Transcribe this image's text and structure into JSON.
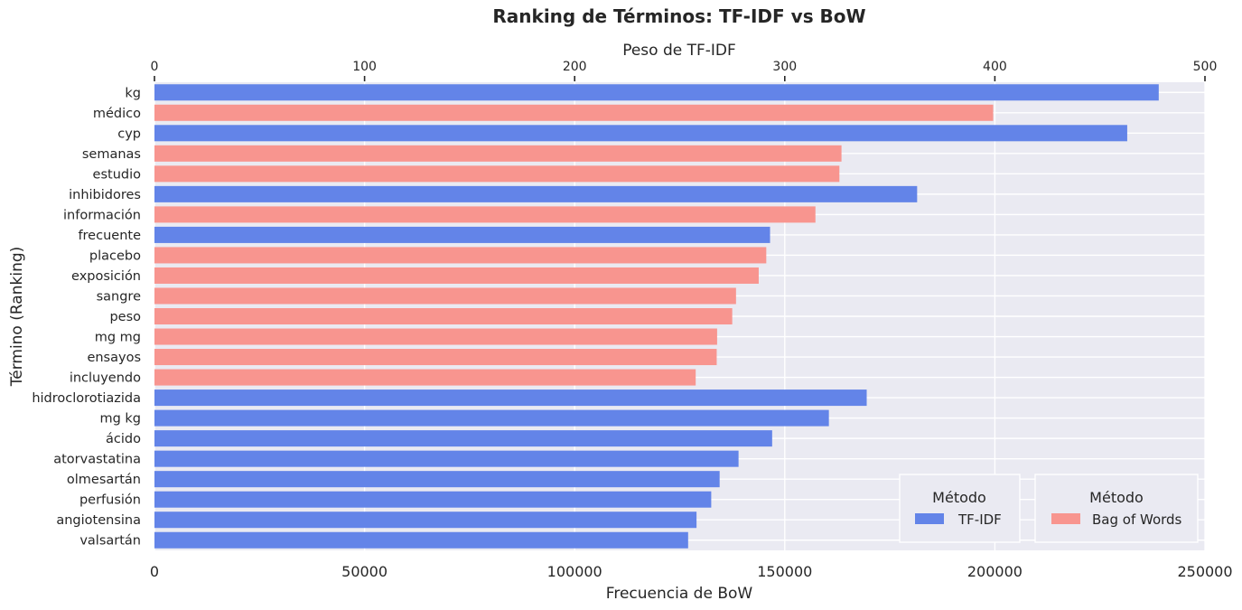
{
  "chart_data": {
    "type": "bar",
    "orientation": "horizontal",
    "title": "Ranking de Términos: TF-IDF vs BoW",
    "xlabel_bottom": "Frecuencia de BoW",
    "xlabel_top": "Peso de TF-IDF",
    "ylabel": "Término (Ranking)",
    "xlim_bottom": [
      0,
      250000
    ],
    "xlim_top": [
      0,
      500
    ],
    "xticks_bottom": [
      "0",
      "50000",
      "100000",
      "150000",
      "200000",
      "250000"
    ],
    "xticks_top": [
      "0",
      "100",
      "200",
      "300",
      "400",
      "500"
    ],
    "grid": true,
    "categories": [
      "kg",
      "médico",
      "cyp",
      "semanas",
      "estudio",
      "inhibidores",
      "información",
      "frecuente",
      "placebo",
      "exposición",
      "sangre",
      "peso",
      "mg mg",
      "ensayos",
      "incluyendo",
      "hidroclorotiazida",
      "mg kg",
      "ácido",
      "atorvastatina",
      "olmesartán",
      "perfusión",
      "angiotensina",
      "valsartán"
    ],
    "series": [
      {
        "name": "TF-IDF",
        "axis": "top",
        "color": "#6384E8",
        "values": [
          478,
          null,
          463,
          null,
          null,
          363,
          null,
          293,
          null,
          null,
          null,
          null,
          null,
          null,
          null,
          339,
          321,
          294,
          278,
          269,
          265,
          258,
          254
        ]
      },
      {
        "name": "Bag of Words",
        "axis": "bottom",
        "color": "#F8958F",
        "values": [
          null,
          199600,
          null,
          163500,
          163000,
          null,
          157300,
          null,
          145600,
          143800,
          138400,
          137500,
          133900,
          133800,
          128800,
          null,
          null,
          null,
          null,
          null,
          null,
          null,
          null
        ]
      }
    ],
    "overlap_color": "#7D7CCB",
    "legends": [
      {
        "title": "Método",
        "entries": [
          "TF-IDF"
        ],
        "placement": "lower-right"
      },
      {
        "title": "Método",
        "entries": [
          "Bag of Words"
        ],
        "placement": "lower-right"
      }
    ]
  }
}
